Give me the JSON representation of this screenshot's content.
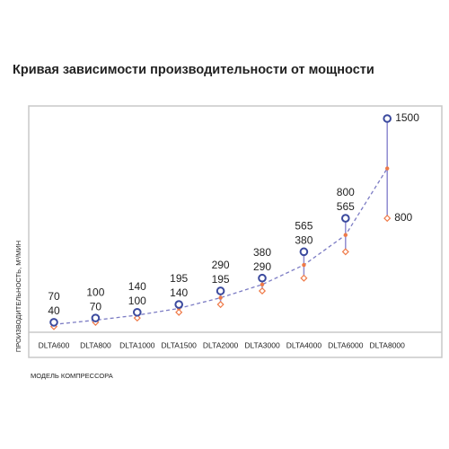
{
  "chart_data": {
    "type": "range",
    "title": "Кривая зависимости производительности от мощности",
    "y_label": "ПРОИЗВОДИТЕЛЬНОСТЬ, М³/МИН",
    "x_label": "МОДЕЛЬ КОМПРЕССОРА",
    "categories": [
      "DLTA600",
      "DLTA800",
      "DLTA1000",
      "DLTA1500",
      "DLTA2000",
      "DLTA3000",
      "DLTA4000",
      "DLTA6000",
      "DLTA8000"
    ],
    "series": [
      {
        "color": "#3b4a9e",
        "values": [
          70,
          100,
          140,
          195,
          290,
          380,
          565,
          800,
          1500
        ]
      },
      {
        "color": "#ef7a48",
        "values": [
          40,
          70,
          100,
          140,
          195,
          290,
          380,
          565,
          800
        ]
      }
    ],
    "range_color": "#8f8bd0",
    "trend_color": "#7c7cc4"
  }
}
